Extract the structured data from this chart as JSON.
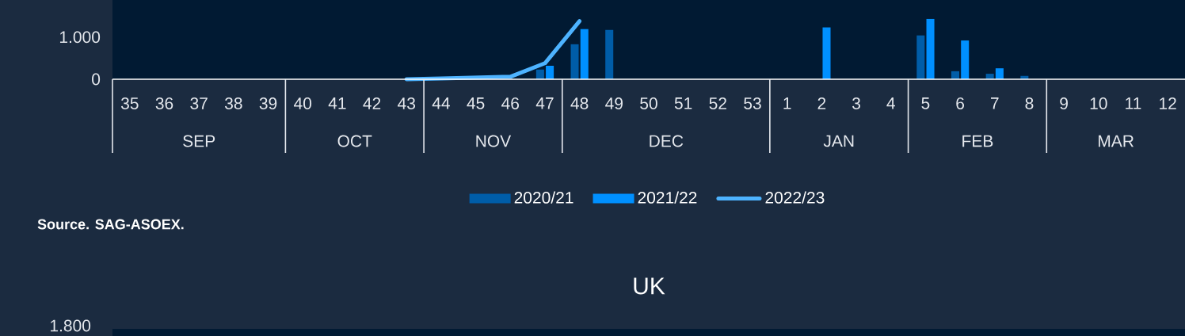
{
  "chart_data": [
    {
      "type": "bar",
      "categories": [
        "35",
        "36",
        "37",
        "38",
        "39",
        "40",
        "41",
        "42",
        "43",
        "44",
        "45",
        "46",
        "47",
        "48",
        "49",
        "50",
        "51",
        "52",
        "53",
        "1",
        "2",
        "3",
        "4",
        "5",
        "6",
        "7",
        "8",
        "9",
        "10",
        "11",
        "12"
      ],
      "series": [
        {
          "name": "2020/21",
          "color": "#005da8",
          "values": [
            null,
            null,
            null,
            null,
            null,
            null,
            null,
            null,
            null,
            null,
            null,
            null,
            230,
            830,
            1170,
            null,
            null,
            null,
            null,
            null,
            null,
            null,
            null,
            1040,
            190,
            130,
            80,
            null,
            null,
            null,
            null
          ]
        },
        {
          "name": "2021/22",
          "color": "#0090ff",
          "values": [
            null,
            null,
            null,
            null,
            null,
            null,
            null,
            null,
            null,
            null,
            null,
            null,
            320,
            1190,
            null,
            null,
            null,
            null,
            null,
            null,
            1230,
            null,
            null,
            1430,
            920,
            260,
            null,
            null,
            null,
            null,
            null
          ]
        },
        {
          "name": "2022/23",
          "type": "line",
          "color": "#4db3ff",
          "values": [
            null,
            null,
            null,
            null,
            null,
            null,
            null,
            null,
            0,
            20,
            40,
            60,
            380,
            1380,
            null,
            null,
            null,
            null,
            null,
            null,
            null,
            null,
            null,
            null,
            null,
            null,
            null,
            null,
            null,
            null,
            null
          ]
        }
      ],
      "ylim": [
        0,
        1880
      ],
      "yticks": [
        0,
        {
          "value": 1000,
          "label": "1.000"
        }
      ],
      "legend": "bottom",
      "annotations": [
        "SEP",
        "OCT",
        "NOV",
        "DEC",
        "JAN",
        "FEB",
        "MAR",
        "Source. SAG-ASOEX."
      ]
    },
    {
      "type": "other",
      "title": "UK",
      "annotations": [
        "1.800"
      ]
    }
  ]
}
